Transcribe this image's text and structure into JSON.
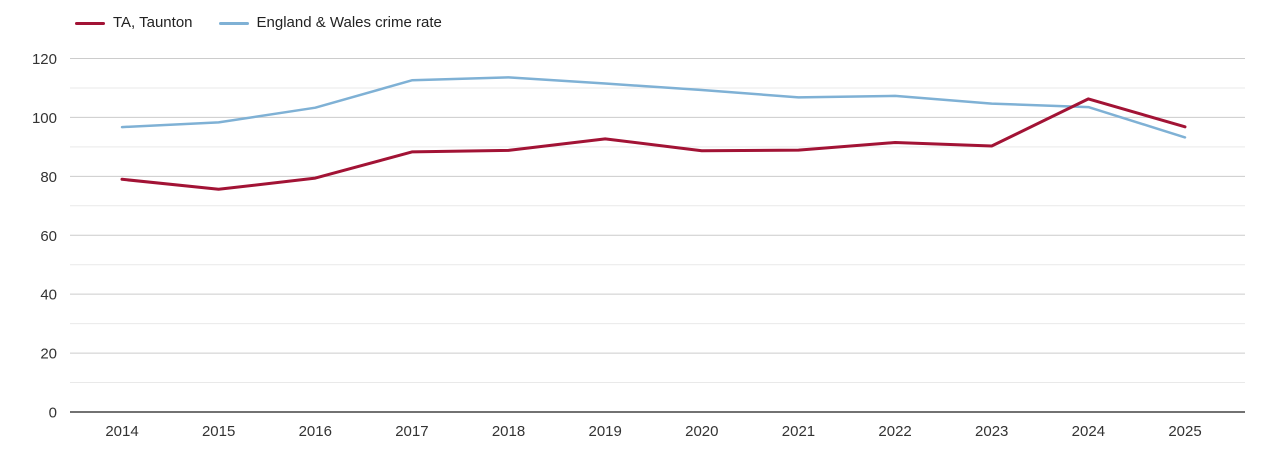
{
  "page": {
    "background": "#ffffff"
  },
  "legend": [
    {
      "label": "TA, Taunton",
      "color": "#a21335"
    },
    {
      "label": "England & Wales crime rate",
      "color": "#7fb1d5"
    }
  ],
  "chart_data": {
    "type": "line",
    "title": "",
    "xlabel": "",
    "ylabel": "",
    "x": [
      "2014",
      "2015",
      "2016",
      "2017",
      "2018",
      "2019",
      "2020",
      "2021",
      "2022",
      "2023",
      "2024",
      "2025"
    ],
    "series": [
      {
        "name": "TA, Taunton",
        "color": "#a21335",
        "stroke_width": 3,
        "values": [
          79,
          75.6,
          79.4,
          88.3,
          88.8,
          92.7,
          88.7,
          88.9,
          91.5,
          90.3,
          106.3,
          96.8
        ]
      },
      {
        "name": "England & Wales crime rate",
        "color": "#7fb1d5",
        "stroke_width": 2.5,
        "values": [
          96.7,
          98.3,
          103.3,
          112.6,
          113.6,
          111.5,
          109.3,
          106.8,
          107.3,
          104.7,
          103.5,
          93.2
        ]
      }
    ],
    "ylim": [
      0,
      120
    ],
    "yticks": [
      0,
      20,
      40,
      60,
      80,
      100,
      120
    ],
    "minor_yticks": [
      10,
      30,
      50,
      70,
      90,
      110
    ],
    "grid": true,
    "legend_position": "top-left",
    "colors": {
      "major_grid": "#cccccc",
      "minor_grid": "#e9e9e9",
      "axis_line": "#444444",
      "tick_label": "#333333"
    }
  }
}
